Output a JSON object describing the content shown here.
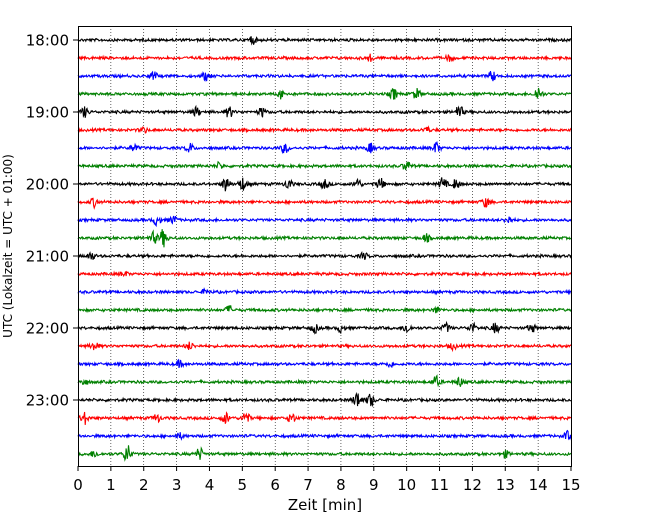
{
  "chart_data": {
    "type": "line",
    "title": "",
    "xlabel": "Zeit  [min]",
    "ylabel": "UTC (Lokalzeit = UTC + 01:00)",
    "xlim": [
      0,
      15
    ],
    "x_ticks": [
      0,
      1,
      2,
      3,
      4,
      5,
      6,
      7,
      8,
      9,
      10,
      11,
      12,
      13,
      14,
      15
    ],
    "x_tick_labels": [
      "0",
      "1",
      "2",
      "3",
      "4",
      "5",
      "6",
      "7",
      "8",
      "9",
      "10",
      "11",
      "12",
      "13",
      "14",
      "15"
    ],
    "vertical_grid": true,
    "trace_interval_minutes": 15,
    "trace_colors": [
      "#000000",
      "#ff0000",
      "#0000ff",
      "#008000"
    ],
    "y_tick_labels": [
      "18:00",
      "19:00",
      "20:00",
      "21:00",
      "22:00",
      "23:00"
    ],
    "traces": [
      {
        "start": "18:00",
        "color": "#000000",
        "events": [
          {
            "x": 5.3,
            "amp": 0.45
          }
        ]
      },
      {
        "start": "18:15",
        "color": "#ff0000",
        "events": [
          {
            "x": 8.9,
            "amp": 0.35
          },
          {
            "x": 11.3,
            "amp": 0.3
          }
        ]
      },
      {
        "start": "18:30",
        "color": "#0000ff",
        "events": [
          {
            "x": 2.3,
            "amp": 0.45
          },
          {
            "x": 3.9,
            "amp": 0.5
          },
          {
            "x": 12.6,
            "amp": 0.55
          }
        ]
      },
      {
        "start": "18:45",
        "color": "#008000",
        "events": [
          {
            "x": 6.2,
            "amp": 0.5
          },
          {
            "x": 9.6,
            "amp": 0.6
          },
          {
            "x": 10.3,
            "amp": 0.55
          },
          {
            "x": 14.0,
            "amp": 0.75
          }
        ]
      },
      {
        "start": "19:00",
        "color": "#000000",
        "events": [
          {
            "x": 0.2,
            "amp": 0.55
          },
          {
            "x": 3.6,
            "amp": 0.5
          },
          {
            "x": 4.6,
            "amp": 0.6
          },
          {
            "x": 5.6,
            "amp": 0.5
          },
          {
            "x": 11.6,
            "amp": 0.75
          }
        ]
      },
      {
        "start": "19:15",
        "color": "#ff0000",
        "events": [
          {
            "x": 2.0,
            "amp": 0.3
          },
          {
            "x": 10.6,
            "amp": 0.3
          }
        ]
      },
      {
        "start": "19:30",
        "color": "#0000ff",
        "events": [
          {
            "x": 1.7,
            "amp": 0.4
          },
          {
            "x": 3.4,
            "amp": 0.5
          },
          {
            "x": 6.3,
            "amp": 0.55
          },
          {
            "x": 8.9,
            "amp": 0.5
          },
          {
            "x": 10.9,
            "amp": 0.6
          }
        ]
      },
      {
        "start": "19:45",
        "color": "#008000",
        "events": [
          {
            "x": 4.3,
            "amp": 0.35
          },
          {
            "x": 10.0,
            "amp": 0.55
          }
        ]
      },
      {
        "start": "20:00",
        "color": "#000000",
        "events": [
          {
            "x": 4.5,
            "amp": 0.85
          },
          {
            "x": 5.0,
            "amp": 0.7
          },
          {
            "x": 6.4,
            "amp": 0.5
          },
          {
            "x": 7.5,
            "amp": 0.5
          },
          {
            "x": 8.5,
            "amp": 0.6
          },
          {
            "x": 9.2,
            "amp": 0.6
          },
          {
            "x": 11.1,
            "amp": 0.7
          },
          {
            "x": 11.5,
            "amp": 0.55
          }
        ]
      },
      {
        "start": "20:15",
        "color": "#ff0000",
        "events": [
          {
            "x": 0.5,
            "amp": 0.5
          },
          {
            "x": 12.4,
            "amp": 0.5
          }
        ]
      },
      {
        "start": "20:30",
        "color": "#0000ff",
        "events": [
          {
            "x": 2.4,
            "amp": 0.55
          },
          {
            "x": 2.9,
            "amp": 0.45
          },
          {
            "x": 13.1,
            "amp": 0.4
          }
        ]
      },
      {
        "start": "20:45",
        "color": "#008000",
        "events": [
          {
            "x": 2.3,
            "amp": 0.6
          },
          {
            "x": 2.6,
            "amp": 0.95
          },
          {
            "x": 10.6,
            "amp": 0.4
          }
        ]
      },
      {
        "start": "21:00",
        "color": "#000000",
        "events": [
          {
            "x": 0.4,
            "amp": 0.45
          },
          {
            "x": 8.7,
            "amp": 0.35
          }
        ]
      },
      {
        "start": "21:15",
        "color": "#ff0000",
        "events": [
          {
            "x": 1.4,
            "amp": 0.25
          }
        ]
      },
      {
        "start": "21:30",
        "color": "#0000ff",
        "events": [
          {
            "x": 3.9,
            "amp": 0.3
          }
        ]
      },
      {
        "start": "21:45",
        "color": "#008000",
        "events": [
          {
            "x": 4.6,
            "amp": 0.45
          },
          {
            "x": 10.9,
            "amp": 0.3
          }
        ]
      },
      {
        "start": "22:00",
        "color": "#000000",
        "events": [
          {
            "x": 7.2,
            "amp": 0.5
          },
          {
            "x": 8.0,
            "amp": 0.45
          },
          {
            "x": 10.0,
            "amp": 0.55
          },
          {
            "x": 11.2,
            "amp": 0.5
          },
          {
            "x": 12.0,
            "amp": 0.5
          },
          {
            "x": 12.7,
            "amp": 0.55
          },
          {
            "x": 13.8,
            "amp": 0.5
          }
        ]
      },
      {
        "start": "22:15",
        "color": "#ff0000",
        "events": [
          {
            "x": 0.5,
            "amp": 0.5
          },
          {
            "x": 3.4,
            "amp": 0.4
          },
          {
            "x": 11.4,
            "amp": 0.35
          }
        ]
      },
      {
        "start": "22:30",
        "color": "#0000ff",
        "events": [
          {
            "x": 3.1,
            "amp": 0.35
          },
          {
            "x": 9.5,
            "amp": 0.3
          }
        ]
      },
      {
        "start": "22:45",
        "color": "#008000",
        "events": [
          {
            "x": 0.2,
            "amp": 0.3
          },
          {
            "x": 10.9,
            "amp": 0.6
          },
          {
            "x": 11.6,
            "amp": 0.5
          }
        ]
      },
      {
        "start": "23:00",
        "color": "#000000",
        "events": [
          {
            "x": 8.5,
            "amp": 0.9
          },
          {
            "x": 8.9,
            "amp": 0.7
          }
        ]
      },
      {
        "start": "23:15",
        "color": "#ff0000",
        "events": [
          {
            "x": 0.2,
            "amp": 0.65
          },
          {
            "x": 2.4,
            "amp": 0.45
          },
          {
            "x": 4.5,
            "amp": 0.6
          },
          {
            "x": 5.1,
            "amp": 0.7
          },
          {
            "x": 6.5,
            "amp": 0.6
          }
        ]
      },
      {
        "start": "23:30",
        "color": "#0000ff",
        "events": [
          {
            "x": 3.1,
            "amp": 0.3
          },
          {
            "x": 14.9,
            "amp": 0.45
          }
        ]
      },
      {
        "start": "23:45",
        "color": "#008000",
        "events": [
          {
            "x": 0.5,
            "amp": 0.35
          },
          {
            "x": 1.5,
            "amp": 1.0
          },
          {
            "x": 3.7,
            "amp": 0.65
          },
          {
            "x": 13.0,
            "amp": 0.35
          }
        ]
      }
    ]
  }
}
